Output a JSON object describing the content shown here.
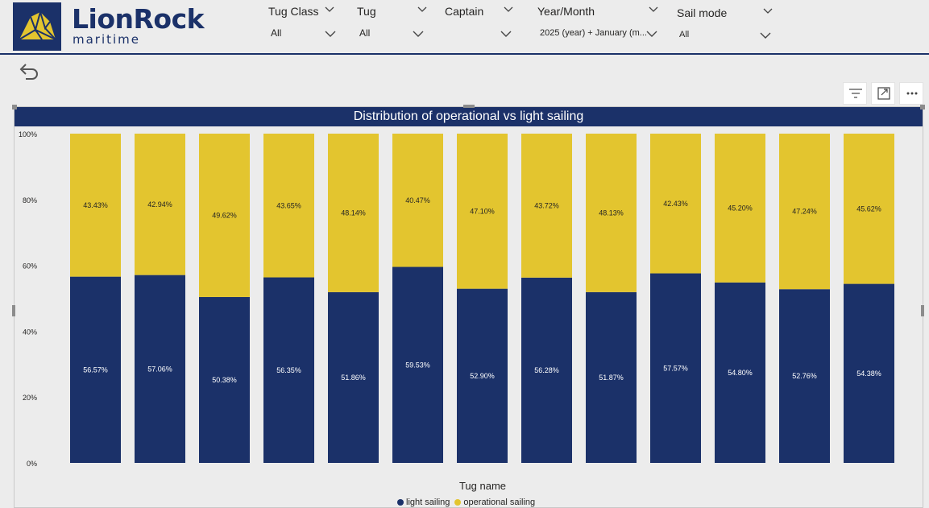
{
  "brand": {
    "name": "LionRock",
    "subtitle": "maritime"
  },
  "filters": [
    {
      "title": "Tug Class",
      "value": "All"
    },
    {
      "title": "Tug",
      "value": "All"
    },
    {
      "title": "Captain",
      "value": ""
    },
    {
      "title": "Year/Month",
      "value": "2025 (year) + January (m..."
    },
    {
      "title": "Sail mode",
      "value": "All"
    }
  ],
  "colors": {
    "navy": "#1b3169",
    "yellow": "#e3c52f",
    "background": "#ececec"
  },
  "chart_data": {
    "type": "bar",
    "stacked": "100%",
    "title": "Distribution of operational vs light sailing",
    "xlabel": "Tug name",
    "ylabel": "",
    "ylim": [
      0,
      100
    ],
    "yticks": [
      "0%",
      "20%",
      "40%",
      "60%",
      "80%",
      "100%"
    ],
    "legend_position": "bottom",
    "categories": [
      "",
      "",
      "",
      "",
      "",
      "",
      "",
      "",
      "",
      "",
      "",
      "",
      ""
    ],
    "series": [
      {
        "name": "light sailing",
        "color": "#1b3169",
        "values": [
          56.57,
          57.06,
          50.38,
          56.35,
          51.86,
          59.53,
          52.9,
          56.28,
          51.87,
          57.57,
          54.8,
          52.76,
          54.38
        ],
        "labels": [
          "56.57%",
          "57.06%",
          "50.38%",
          "56.35%",
          "51.86%",
          "59.53%",
          "52.90%",
          "56.28%",
          "51.87%",
          "57.57%",
          "54.80%",
          "52.76%",
          "54.38%"
        ]
      },
      {
        "name": "operational sailing",
        "color": "#e3c52f",
        "values": [
          43.43,
          42.94,
          49.62,
          43.65,
          48.14,
          40.47,
          47.1,
          43.72,
          48.13,
          42.43,
          45.2,
          47.24,
          45.62
        ],
        "labels": [
          "43.43%",
          "42.94%",
          "49.62%",
          "43.65%",
          "48.14%",
          "40.47%",
          "47.10%",
          "43.72%",
          "48.13%",
          "42.43%",
          "45.20%",
          "47.24%",
          "45.62%"
        ]
      }
    ]
  }
}
